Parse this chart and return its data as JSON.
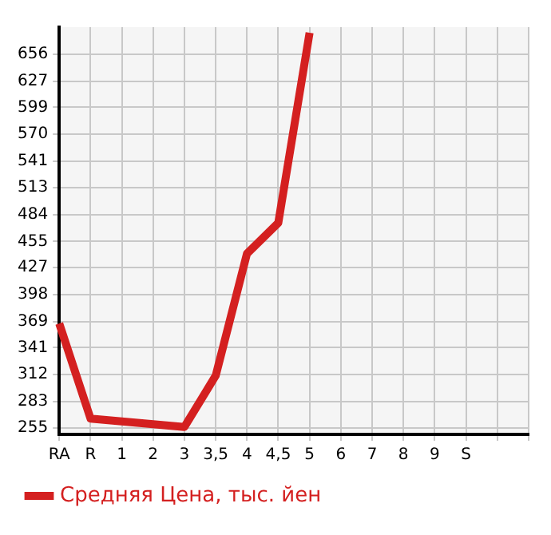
{
  "chart_data": {
    "type": "line",
    "categories": [
      "RA",
      "R",
      "1",
      "2",
      "3",
      "3,5",
      "4",
      "4,5",
      "5",
      "6",
      "7",
      "8",
      "9",
      "S",
      null,
      null
    ],
    "series": [
      {
        "name": "Средняя Цена, тыс. йен",
        "color": "#d42020",
        "values": [
          367,
          265,
          null,
          null,
          256,
          311,
          442,
          475,
          679,
          null,
          null,
          null,
          null,
          null,
          null,
          null
        ]
      }
    ],
    "ylim": [
      248,
      685
    ],
    "yticks": [
      255,
      283,
      312,
      341,
      369,
      398,
      427,
      455,
      484,
      513,
      541,
      570,
      599,
      627,
      656
    ],
    "grid": true,
    "legend": "bottom left",
    "marker": "none",
    "line_style": "solid"
  }
}
